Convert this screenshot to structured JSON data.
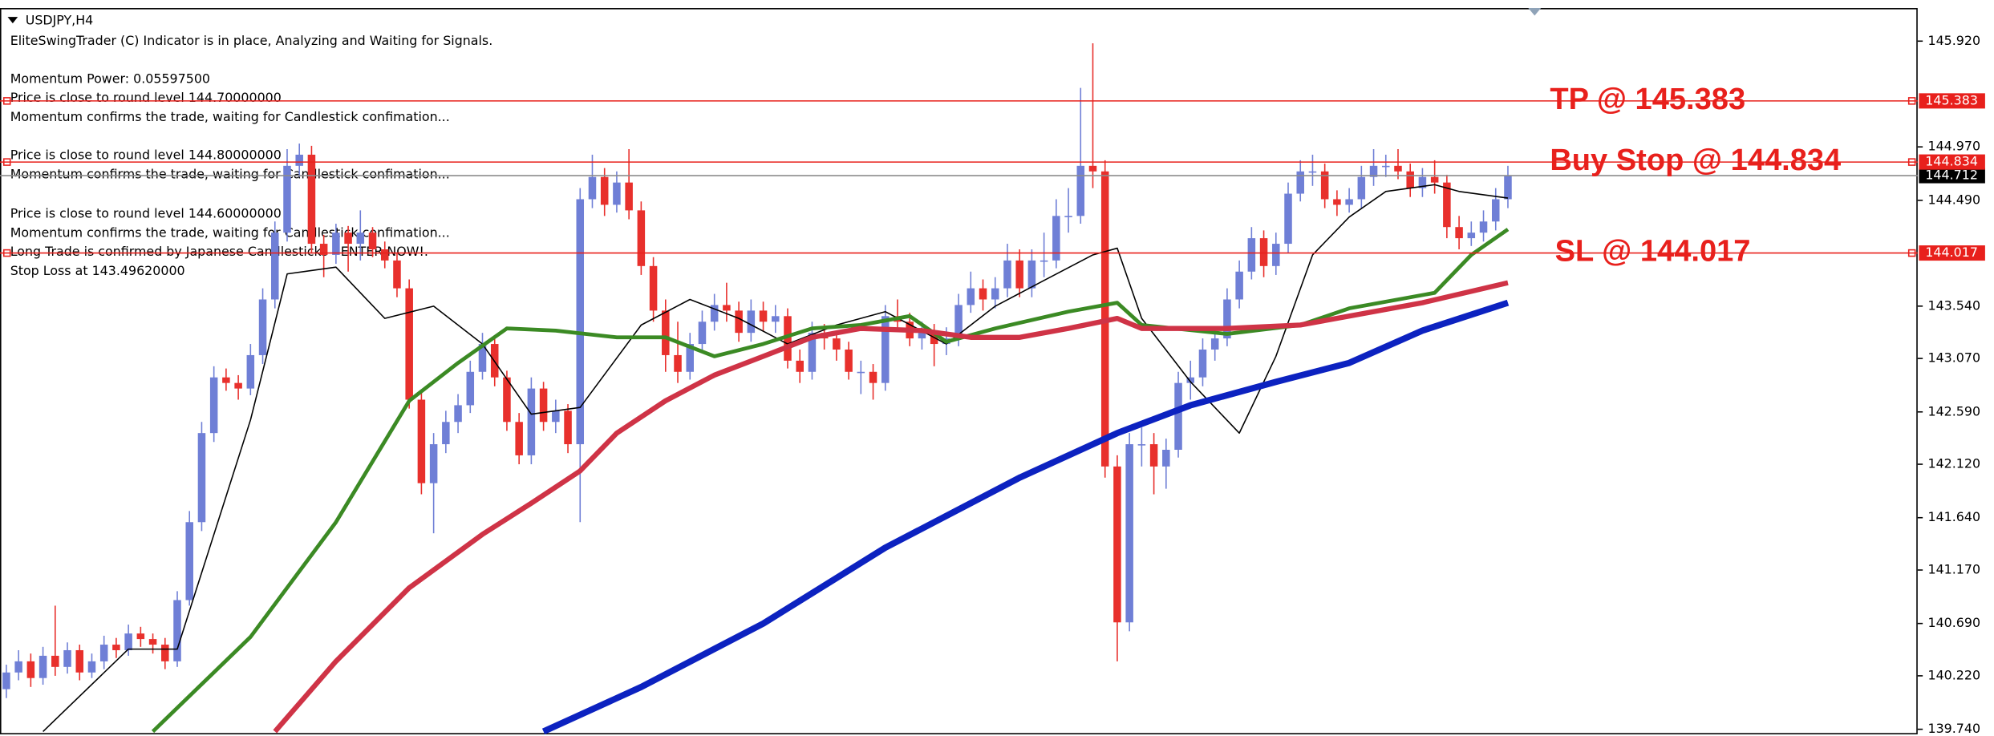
{
  "chart_data": {
    "type": "candlestick",
    "title": "USDJPY,H4",
    "annotations": [
      "EliteSwingTrader (C) Indicator is in place, Analyzing and Waiting for Signals.",
      "Momentum Power: 0.05597500",
      "Price is close to round level 144.70000000",
      "Momentum confirms the trade, waiting for Candlestick confimation...",
      "Price is close to round level 144.80000000",
      "Momentum confirms the trade, waiting for Candlestick confimation...",
      "Price is close to round level 144.60000000",
      "Momentum confirms the trade, waiting for Candlestick confimation...",
      "Long Trade is confirmed by Japanese Candlesticks - ENTER NOW!.",
      "Stop Loss at 143.49620000"
    ],
    "ylim": [
      139.706,
      146.217
    ],
    "yticks": [
      {
        "value": 145.92,
        "label": "145.920"
      },
      {
        "value": 144.97,
        "label": "144.970"
      },
      {
        "value": 144.49,
        "label": "144.490"
      },
      {
        "value": 143.54,
        "label": "143.540"
      },
      {
        "value": 143.07,
        "label": "143.070"
      },
      {
        "value": 142.59,
        "label": "142.590"
      },
      {
        "value": 142.12,
        "label": "142.120"
      },
      {
        "value": 141.64,
        "label": "141.640"
      },
      {
        "value": 141.17,
        "label": "141.170"
      },
      {
        "value": 140.69,
        "label": "140.690"
      },
      {
        "value": 140.22,
        "label": "140.220"
      },
      {
        "value": 139.74,
        "label": "139.740"
      }
    ],
    "levels": [
      {
        "label": "TP @ 145.383",
        "value": 145.383
      },
      {
        "label": "Buy Stop @ 144.834",
        "value": 144.834
      },
      {
        "label": "SL @ 144.017",
        "value": 144.017
      }
    ],
    "level_color": "#e8201c",
    "current_price": 144.712,
    "up_color": "#6f7fd6",
    "down_color": "#e8302c",
    "ohlc": [
      [
        140.1,
        140.32,
        140.02,
        140.25
      ],
      [
        140.25,
        140.45,
        140.18,
        140.35
      ],
      [
        140.35,
        140.42,
        140.12,
        140.2
      ],
      [
        140.2,
        140.48,
        140.14,
        140.4
      ],
      [
        140.4,
        140.85,
        140.22,
        140.3
      ],
      [
        140.3,
        140.52,
        140.24,
        140.45
      ],
      [
        140.45,
        140.5,
        140.18,
        140.25
      ],
      [
        140.25,
        140.42,
        140.2,
        140.35
      ],
      [
        140.35,
        140.58,
        140.28,
        140.5
      ],
      [
        140.5,
        140.56,
        140.38,
        140.45
      ],
      [
        140.45,
        140.68,
        140.4,
        140.6
      ],
      [
        140.6,
        140.66,
        140.48,
        140.55
      ],
      [
        140.55,
        140.6,
        140.42,
        140.5
      ],
      [
        140.5,
        140.56,
        140.28,
        140.35
      ],
      [
        140.35,
        140.98,
        140.3,
        140.9
      ],
      [
        140.9,
        141.7,
        140.85,
        141.6
      ],
      [
        141.6,
        142.5,
        141.52,
        142.4
      ],
      [
        142.4,
        143.0,
        142.32,
        142.9
      ],
      [
        142.9,
        142.98,
        142.78,
        142.85
      ],
      [
        142.85,
        142.92,
        142.7,
        142.8
      ],
      [
        142.8,
        143.2,
        142.74,
        143.1
      ],
      [
        143.1,
        143.7,
        143.02,
        143.6
      ],
      [
        143.6,
        144.3,
        143.52,
        144.2
      ],
      [
        144.2,
        144.95,
        144.12,
        144.8
      ],
      [
        144.8,
        145.0,
        144.7,
        144.9
      ],
      [
        144.9,
        144.98,
        144.02,
        144.1
      ],
      [
        144.1,
        144.18,
        143.8,
        144.0
      ],
      [
        144.0,
        144.28,
        143.92,
        144.2
      ],
      [
        144.2,
        144.26,
        143.85,
        144.1
      ],
      [
        144.1,
        144.4,
        143.95,
        144.2
      ],
      [
        144.2,
        144.25,
        143.98,
        144.05
      ],
      [
        144.05,
        144.12,
        143.88,
        143.95
      ],
      [
        143.95,
        144.02,
        143.62,
        143.7
      ],
      [
        143.7,
        143.78,
        142.62,
        142.7
      ],
      [
        142.7,
        142.78,
        141.85,
        141.95
      ],
      [
        141.95,
        142.4,
        141.5,
        142.3
      ],
      [
        142.3,
        142.6,
        142.22,
        142.5
      ],
      [
        142.5,
        142.75,
        142.4,
        142.65
      ],
      [
        142.65,
        143.05,
        142.58,
        142.95
      ],
      [
        142.95,
        143.3,
        142.88,
        143.2
      ],
      [
        143.2,
        143.26,
        142.82,
        142.9
      ],
      [
        142.9,
        142.96,
        142.42,
        142.5
      ],
      [
        142.5,
        142.58,
        142.12,
        142.2
      ],
      [
        142.2,
        142.9,
        142.12,
        142.8
      ],
      [
        142.8,
        142.86,
        142.42,
        142.5
      ],
      [
        142.5,
        142.7,
        142.4,
        142.6
      ],
      [
        142.6,
        142.66,
        142.22,
        142.3
      ],
      [
        142.3,
        144.6,
        141.6,
        144.5
      ],
      [
        144.5,
        144.9,
        144.42,
        144.7
      ],
      [
        144.7,
        144.78,
        144.35,
        144.45
      ],
      [
        144.45,
        144.75,
        144.38,
        144.65
      ],
      [
        144.65,
        144.95,
        144.32,
        144.4
      ],
      [
        144.4,
        144.48,
        143.82,
        143.9
      ],
      [
        143.9,
        143.98,
        143.4,
        143.5
      ],
      [
        143.5,
        143.6,
        142.95,
        143.1
      ],
      [
        143.1,
        143.4,
        142.85,
        142.95
      ],
      [
        142.95,
        143.3,
        142.88,
        143.2
      ],
      [
        143.2,
        143.5,
        143.12,
        143.4
      ],
      [
        143.4,
        143.65,
        143.32,
        143.55
      ],
      [
        143.55,
        143.75,
        143.4,
        143.5
      ],
      [
        143.5,
        143.58,
        143.22,
        143.3
      ],
      [
        143.3,
        143.6,
        143.22,
        143.5
      ],
      [
        143.5,
        143.58,
        143.32,
        143.4
      ],
      [
        143.4,
        143.55,
        143.3,
        143.45
      ],
      [
        143.45,
        143.52,
        142.98,
        143.05
      ],
      [
        143.05,
        143.15,
        142.85,
        142.95
      ],
      [
        142.95,
        143.4,
        142.88,
        143.3
      ],
      [
        143.3,
        143.38,
        143.15,
        143.25
      ],
      [
        143.25,
        143.32,
        143.05,
        143.15
      ],
      [
        143.15,
        143.22,
        142.88,
        142.95
      ],
      [
        142.95,
        143.05,
        142.75,
        142.95
      ],
      [
        142.95,
        143.02,
        142.7,
        142.85
      ],
      [
        142.85,
        143.55,
        142.78,
        143.45
      ],
      [
        143.45,
        143.6,
        143.32,
        143.4
      ],
      [
        143.4,
        143.48,
        143.18,
        143.25
      ],
      [
        143.25,
        143.4,
        143.15,
        143.3
      ],
      [
        143.3,
        143.38,
        143.0,
        143.2
      ],
      [
        143.2,
        143.35,
        143.1,
        143.25
      ],
      [
        143.25,
        143.65,
        143.18,
        143.55
      ],
      [
        143.55,
        143.85,
        143.48,
        143.7
      ],
      [
        143.7,
        143.78,
        143.5,
        143.6
      ],
      [
        143.6,
        143.8,
        143.52,
        143.7
      ],
      [
        143.7,
        144.1,
        143.62,
        143.95
      ],
      [
        143.95,
        144.05,
        143.62,
        143.7
      ],
      [
        143.7,
        144.05,
        143.62,
        143.95
      ],
      [
        143.95,
        144.2,
        143.8,
        143.95
      ],
      [
        143.95,
        144.5,
        143.88,
        144.35
      ],
      [
        144.35,
        144.6,
        144.2,
        144.35
      ],
      [
        144.35,
        145.5,
        144.28,
        144.8
      ],
      [
        144.8,
        145.9,
        144.6,
        144.75
      ],
      [
        144.75,
        144.85,
        142.0,
        142.1
      ],
      [
        142.1,
        142.2,
        140.35,
        140.7
      ],
      [
        140.7,
        142.4,
        140.62,
        142.3
      ],
      [
        142.3,
        142.45,
        142.1,
        142.3
      ],
      [
        142.3,
        142.4,
        141.85,
        142.1
      ],
      [
        142.1,
        142.35,
        141.9,
        142.25
      ],
      [
        142.25,
        142.95,
        142.18,
        142.85
      ],
      [
        142.85,
        143.05,
        142.7,
        142.9
      ],
      [
        142.9,
        143.25,
        142.82,
        143.15
      ],
      [
        143.15,
        143.35,
        143.05,
        143.25
      ],
      [
        143.25,
        143.7,
        143.18,
        143.6
      ],
      [
        143.6,
        143.95,
        143.52,
        143.85
      ],
      [
        143.85,
        144.25,
        143.78,
        144.15
      ],
      [
        144.15,
        144.22,
        143.8,
        143.9
      ],
      [
        143.9,
        144.2,
        143.82,
        144.1
      ],
      [
        144.1,
        144.65,
        144.02,
        144.55
      ],
      [
        144.55,
        144.85,
        144.48,
        144.75
      ],
      [
        144.75,
        144.9,
        144.62,
        144.75
      ],
      [
        144.75,
        144.82,
        144.42,
        144.5
      ],
      [
        144.5,
        144.58,
        144.35,
        144.45
      ],
      [
        144.45,
        144.6,
        144.38,
        144.5
      ],
      [
        144.5,
        144.8,
        144.42,
        144.7
      ],
      [
        144.7,
        144.95,
        144.62,
        144.8
      ],
      [
        144.8,
        144.9,
        144.7,
        144.8
      ],
      [
        144.8,
        144.95,
        144.68,
        144.75
      ],
      [
        144.75,
        144.82,
        144.52,
        144.6
      ],
      [
        144.6,
        144.78,
        144.52,
        144.7
      ],
      [
        144.7,
        144.85,
        144.55,
        144.65
      ],
      [
        144.65,
        144.72,
        144.15,
        144.25
      ],
      [
        144.25,
        144.35,
        144.05,
        144.15
      ],
      [
        144.15,
        144.3,
        144.08,
        144.2
      ],
      [
        144.2,
        144.4,
        144.12,
        144.3
      ],
      [
        144.3,
        144.6,
        144.22,
        144.5
      ],
      [
        144.5,
        144.8,
        144.42,
        144.712
      ]
    ],
    "series": [
      {
        "color": "#000000",
        "width": 1,
        "x": [
          3,
          10,
          14,
          20,
          23,
          27,
          31,
          35,
          39,
          43,
          47,
          52,
          56,
          60,
          64,
          68,
          72,
          77,
          81,
          85,
          89,
          91,
          93,
          97,
          101,
          104,
          107,
          110,
          113,
          117,
          119,
          123
        ],
        "values": [
          139.72,
          140.46,
          140.46,
          142.52,
          143.83,
          143.89,
          143.43,
          143.54,
          143.2,
          142.57,
          142.63,
          143.37,
          143.6,
          143.43,
          143.2,
          143.37,
          143.49,
          143.2,
          143.54,
          143.77,
          144.0,
          144.06,
          143.43,
          142.86,
          142.4,
          143.09,
          144.0,
          144.34,
          144.57,
          144.63,
          144.57,
          144.51
        ]
      },
      {
        "color": "#3b8a24",
        "width": 3,
        "x": [
          12,
          20,
          27,
          33,
          37,
          41,
          45,
          50,
          54,
          58,
          62,
          66,
          70,
          74,
          77,
          81,
          87,
          91,
          93,
          100,
          106,
          110,
          117,
          120,
          123
        ],
        "values": [
          139.72,
          140.57,
          141.6,
          142.69,
          143.03,
          143.34,
          143.32,
          143.26,
          143.26,
          143.09,
          143.2,
          143.34,
          143.37,
          143.45,
          143.22,
          143.34,
          143.49,
          143.57,
          143.37,
          143.29,
          143.37,
          143.52,
          143.66,
          144.0,
          144.23
        ]
      },
      {
        "color": "#cf3346",
        "width": 4,
        "x": [
          22,
          27,
          33,
          39,
          43,
          47,
          50,
          54,
          58,
          62,
          66,
          70,
          75,
          79,
          83,
          87,
          91,
          93,
          100,
          106,
          110,
          116,
          123
        ],
        "values": [
          139.72,
          140.35,
          141.01,
          141.49,
          141.77,
          142.06,
          142.4,
          142.69,
          142.92,
          143.09,
          143.26,
          143.34,
          143.32,
          143.26,
          143.26,
          143.34,
          143.43,
          143.34,
          143.34,
          143.37,
          143.45,
          143.57,
          143.75
        ]
      },
      {
        "color": "#0c22c0",
        "width": 5,
        "x": [
          44,
          52,
          62,
          72,
          83,
          91,
          97,
          104,
          110,
          116,
          123
        ],
        "values": [
          139.72,
          140.12,
          140.69,
          141.37,
          142.0,
          142.4,
          142.65,
          142.86,
          143.03,
          143.32,
          143.57
        ]
      }
    ]
  }
}
